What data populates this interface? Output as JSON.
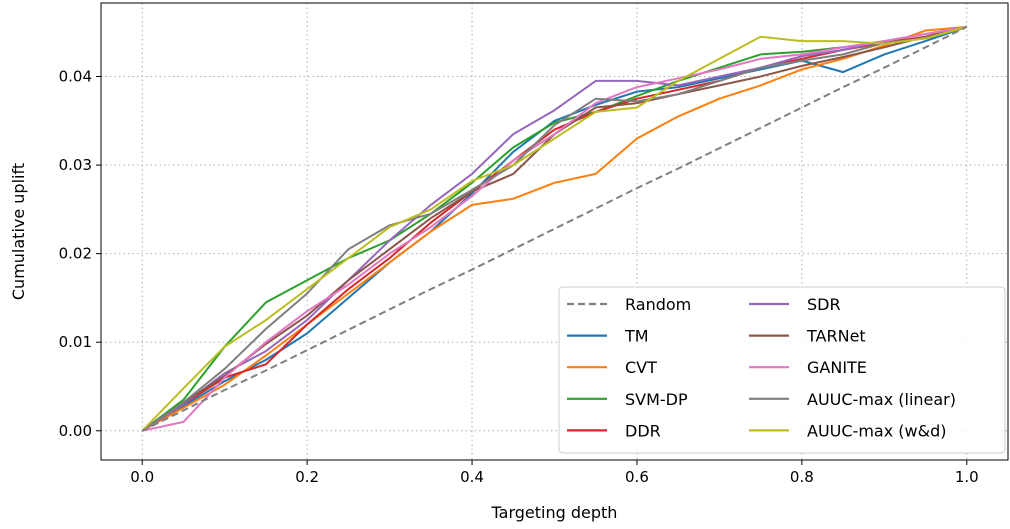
{
  "chart_data": {
    "type": "line",
    "title": "",
    "xlabel": "Targeting depth",
    "ylabel": "Cumulative uplift",
    "xlim": [
      -0.05,
      1.05
    ],
    "ylim": [
      -0.0033,
      0.0483
    ],
    "xticks": [
      0.0,
      0.2,
      0.4,
      0.6,
      0.8,
      1.0
    ],
    "xtick_labels": [
      "0.0",
      "0.2",
      "0.4",
      "0.6",
      "0.8",
      "1.0"
    ],
    "yticks": [
      0.0,
      0.01,
      0.02,
      0.03,
      0.04
    ],
    "ytick_labels": [
      "0.00",
      "0.01",
      "0.02",
      "0.03",
      "0.04"
    ],
    "grid": true,
    "legend_placement": "bottom-right",
    "legend_columns": 2,
    "x": [
      0.0,
      0.05,
      0.1,
      0.15,
      0.2,
      0.25,
      0.3,
      0.35,
      0.4,
      0.45,
      0.5,
      0.55,
      0.6,
      0.65,
      0.7,
      0.75,
      0.8,
      0.85,
      0.9,
      0.95,
      1.0
    ],
    "series": [
      {
        "name": "Random",
        "color": "#808080",
        "dash": "dashed",
        "values": [
          0.0,
          0.0023,
          0.0046,
          0.0068,
          0.0091,
          0.0114,
          0.0137,
          0.016,
          0.0182,
          0.0205,
          0.0228,
          0.0251,
          0.0274,
          0.0296,
          0.0319,
          0.0342,
          0.0365,
          0.0388,
          0.041,
          0.0433,
          0.0456
        ]
      },
      {
        "name": "TM",
        "color": "#1f77b4",
        "values": [
          0.0,
          0.0028,
          0.0056,
          0.008,
          0.011,
          0.015,
          0.019,
          0.0225,
          0.0268,
          0.0315,
          0.035,
          0.0368,
          0.0383,
          0.0388,
          0.0398,
          0.0408,
          0.0418,
          0.0405,
          0.0425,
          0.044,
          0.0456
        ]
      },
      {
        "name": "CVT",
        "color": "#ff7f0e",
        "values": [
          0.0,
          0.0026,
          0.0052,
          0.0085,
          0.012,
          0.0155,
          0.019,
          0.0225,
          0.0255,
          0.0262,
          0.028,
          0.029,
          0.033,
          0.0355,
          0.0375,
          0.039,
          0.0408,
          0.042,
          0.0435,
          0.0452,
          0.0456
        ]
      },
      {
        "name": "SVM-DP",
        "color": "#2ca02c",
        "values": [
          0.0,
          0.0035,
          0.0095,
          0.0145,
          0.017,
          0.0195,
          0.0215,
          0.0245,
          0.028,
          0.032,
          0.0348,
          0.036,
          0.0378,
          0.0395,
          0.041,
          0.0425,
          0.0428,
          0.0433,
          0.044,
          0.0443,
          0.0456
        ]
      },
      {
        "name": "DDR",
        "color": "#d62728",
        "values": [
          0.0,
          0.003,
          0.006,
          0.0075,
          0.012,
          0.016,
          0.0195,
          0.0235,
          0.027,
          0.0305,
          0.034,
          0.036,
          0.0375,
          0.0385,
          0.0395,
          0.041,
          0.042,
          0.043,
          0.0438,
          0.0445,
          0.0456
        ]
      },
      {
        "name": "SDR",
        "color": "#9467bd",
        "values": [
          0.0,
          0.003,
          0.0065,
          0.009,
          0.0125,
          0.017,
          0.0215,
          0.0255,
          0.029,
          0.0335,
          0.0362,
          0.0395,
          0.0395,
          0.039,
          0.04,
          0.041,
          0.0423,
          0.043,
          0.044,
          0.0448,
          0.0456
        ]
      },
      {
        "name": "TARNet",
        "color": "#8c564b",
        "values": [
          0.0,
          0.0032,
          0.0062,
          0.0098,
          0.013,
          0.017,
          0.0205,
          0.024,
          0.027,
          0.029,
          0.0335,
          0.0365,
          0.037,
          0.038,
          0.039,
          0.04,
          0.0412,
          0.0422,
          0.0433,
          0.0445,
          0.0456
        ]
      },
      {
        "name": "GANITE",
        "color": "#e377c2",
        "values": [
          0.0,
          0.001,
          0.006,
          0.01,
          0.0135,
          0.0165,
          0.02,
          0.023,
          0.0265,
          0.0305,
          0.0335,
          0.037,
          0.0388,
          0.0398,
          0.0408,
          0.042,
          0.0425,
          0.0433,
          0.044,
          0.0448,
          0.0456
        ]
      },
      {
        "name": "AUUC-max (linear)",
        "color": "#7f7f7f",
        "values": [
          0.0,
          0.0032,
          0.007,
          0.0115,
          0.0155,
          0.0205,
          0.0232,
          0.0245,
          0.0272,
          0.03,
          0.0345,
          0.0375,
          0.0372,
          0.038,
          0.0395,
          0.041,
          0.0418,
          0.0425,
          0.0438,
          0.0443,
          0.0456
        ]
      },
      {
        "name": "AUUC-max (w&d)",
        "color": "#bcbd22",
        "values": [
          0.0,
          0.0048,
          0.0095,
          0.0125,
          0.016,
          0.0195,
          0.023,
          0.025,
          0.0282,
          0.03,
          0.033,
          0.036,
          0.0365,
          0.0395,
          0.042,
          0.0445,
          0.044,
          0.044,
          0.0437,
          0.0443,
          0.0456
        ]
      }
    ]
  }
}
